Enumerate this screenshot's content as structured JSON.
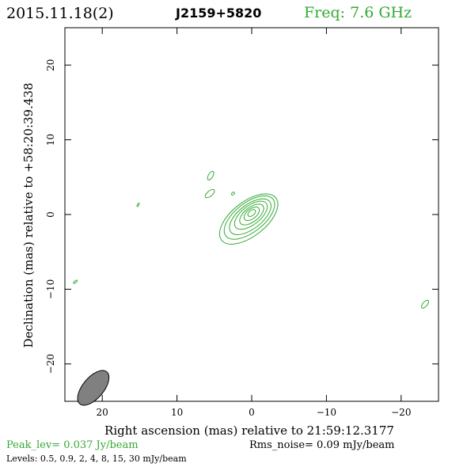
{
  "header": {
    "epoch": "2015.11.18(2)",
    "source": "J2159+5820",
    "freq": "Freq: 7.6 GHz"
  },
  "chart_data": {
    "type": "contour",
    "xlabel": "Right ascension (mas) relative to 21:59:12.3177",
    "ylabel": "Declination (mas) relative to +58:20:39.438",
    "xlim": [
      25,
      -25
    ],
    "ylim": [
      -25,
      25
    ],
    "xticks": [
      20,
      10,
      0,
      -10,
      -20
    ],
    "yticks": [
      20,
      10,
      0,
      -10,
      -20
    ],
    "xtick_labels": [
      "20",
      "10",
      "0",
      "−10",
      "−20"
    ],
    "ytick_labels": [
      "20",
      "10",
      "0",
      "−10",
      "−20"
    ],
    "contour_levels_mJy_per_beam": [
      0.5,
      0.9,
      2,
      4,
      8,
      15,
      30
    ],
    "contour_color": "#33aa33",
    "beam": {
      "x": 21.2,
      "y": -23.2,
      "major_mas": 2.8,
      "minor_mas": 1.4,
      "pa_deg": -50,
      "color": "#808080"
    },
    "core_contours": [
      {
        "x": 0.4,
        "y": -0.6,
        "major": 4.6,
        "minor": 2.3,
        "angle": -38
      },
      {
        "x": 0.3,
        "y": -0.4,
        "major": 4.0,
        "minor": 1.95,
        "angle": -38
      },
      {
        "x": 0.2,
        "y": -0.3,
        "major": 3.3,
        "minor": 1.6,
        "angle": -38
      },
      {
        "x": 0.1,
        "y": -0.1,
        "major": 2.6,
        "minor": 1.25,
        "angle": -38
      },
      {
        "x": 0.0,
        "y": 0.0,
        "major": 1.9,
        "minor": 0.95,
        "angle": -38
      },
      {
        "x": 0.0,
        "y": 0.1,
        "major": 1.2,
        "minor": 0.65,
        "angle": -38
      },
      {
        "x": 0.0,
        "y": 0.2,
        "major": 0.6,
        "minor": 0.35,
        "angle": -38
      }
    ],
    "blob_contours": [
      {
        "x": 5.5,
        "y": 5.2,
        "major": 0.65,
        "minor": 0.3,
        "angle": -60
      },
      {
        "x": 5.6,
        "y": 2.8,
        "major": 0.75,
        "minor": 0.35,
        "angle": -40
      },
      {
        "x": 2.5,
        "y": 2.8,
        "major": 0.25,
        "minor": 0.15,
        "angle": -40
      },
      {
        "x": 15.2,
        "y": 1.3,
        "major": 0.25,
        "minor": 0.1,
        "angle": -60
      },
      {
        "x": 23.6,
        "y": -9.0,
        "major": 0.3,
        "minor": 0.12,
        "angle": -40
      },
      {
        "x": -23.2,
        "y": -12.0,
        "major": 0.65,
        "minor": 0.3,
        "angle": -50
      }
    ]
  },
  "footer": {
    "peak": "Peak_lev=  0.037 Jy/beam",
    "rms": "Rms_noise= 0.09 mJy/beam",
    "levels": "Levels: 0.5, 0.9,   2,   4,   8,  15,  30 mJy/beam"
  },
  "colors": {
    "header_green": "#33aa33",
    "text": "#000000"
  }
}
